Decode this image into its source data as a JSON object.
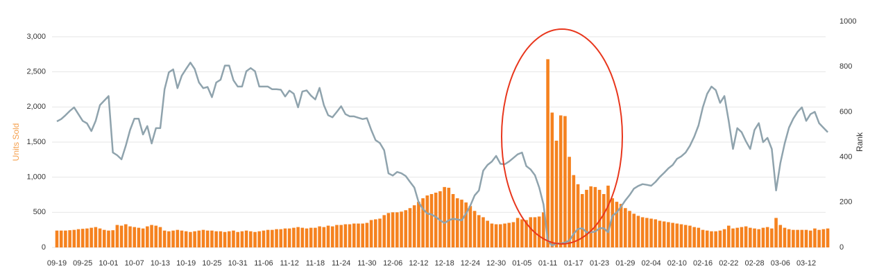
{
  "chart_data": {
    "type": "bar-line",
    "ylabel": "Units Sold",
    "y2label": "Rank",
    "categories": [
      "09-19",
      null,
      null,
      null,
      null,
      null,
      "09-25",
      null,
      null,
      null,
      null,
      null,
      "10-01",
      null,
      null,
      null,
      null,
      null,
      "10-07",
      null,
      null,
      null,
      null,
      null,
      "10-13",
      null,
      null,
      null,
      null,
      null,
      "10-19",
      null,
      null,
      null,
      null,
      null,
      "10-25",
      null,
      null,
      null,
      null,
      null,
      "10-31",
      null,
      null,
      null,
      null,
      null,
      "11-06",
      null,
      null,
      null,
      null,
      null,
      "11-12",
      null,
      null,
      null,
      null,
      null,
      "11-18",
      null,
      null,
      null,
      null,
      null,
      "11-24",
      null,
      null,
      null,
      null,
      null,
      "11-30",
      null,
      null,
      null,
      null,
      null,
      "12-06",
      null,
      null,
      null,
      null,
      null,
      "12-12",
      null,
      null,
      null,
      null,
      null,
      "12-18",
      null,
      null,
      null,
      null,
      null,
      "12-24",
      null,
      null,
      null,
      null,
      null,
      "12-30",
      null,
      null,
      null,
      null,
      null,
      "01-05",
      null,
      null,
      null,
      null,
      null,
      "01-11",
      null,
      null,
      null,
      null,
      null,
      "01-17",
      null,
      null,
      null,
      null,
      null,
      "01-23",
      null,
      null,
      null,
      null,
      null,
      "01-29",
      null,
      null,
      null,
      null,
      null,
      "02-04",
      null,
      null,
      null,
      null,
      null,
      "02-10",
      null,
      null,
      null,
      null,
      null,
      "02-16",
      null,
      null,
      null,
      null,
      null,
      "02-22",
      null,
      null,
      null,
      null,
      null,
      "02-28",
      null,
      null,
      null,
      null,
      null,
      "03-06",
      null,
      null,
      null,
      null,
      null,
      "03-12",
      null,
      null,
      null,
      null,
      null
    ],
    "series": [
      {
        "kind": "bar",
        "color": "#f5821f",
        "values": [
          240,
          240,
          240,
          245,
          250,
          260,
          265,
          270,
          280,
          290,
          270,
          250,
          240,
          245,
          320,
          310,
          330,
          300,
          290,
          280,
          270,
          300,
          320,
          310,
          290,
          240,
          230,
          240,
          250,
          240,
          230,
          220,
          230,
          240,
          250,
          240,
          240,
          230,
          230,
          220,
          230,
          240,
          220,
          230,
          240,
          230,
          220,
          230,
          240,
          250,
          250,
          260,
          260,
          270,
          270,
          280,
          290,
          280,
          270,
          280,
          280,
          300,
          290,
          310,
          300,
          320,
          320,
          330,
          330,
          340,
          340,
          340,
          350,
          390,
          400,
          410,
          460,
          490,
          500,
          500,
          510,
          530,
          560,
          600,
          650,
          700,
          740,
          760,
          780,
          800,
          860,
          850,
          760,
          700,
          680,
          640,
          590,
          520,
          460,
          430,
          380,
          340,
          330,
          330,
          340,
          350,
          360,
          420,
          400,
          390,
          430,
          430,
          440,
          500,
          2680,
          1920,
          1520,
          1880,
          1870,
          1290,
          1030,
          900,
          760,
          820,
          870,
          860,
          820,
          760,
          880,
          700,
          650,
          620,
          560,
          520,
          480,
          450,
          430,
          420,
          410,
          400,
          380,
          370,
          360,
          350,
          340,
          330,
          320,
          310,
          290,
          280,
          250,
          240,
          230,
          230,
          240,
          260,
          310,
          270,
          280,
          290,
          300,
          280,
          270,
          260,
          280,
          290,
          270,
          420,
          320,
          280,
          260,
          250,
          250,
          250,
          250,
          240,
          270,
          250,
          260,
          270
        ]
      },
      {
        "kind": "line",
        "axis": "y2",
        "color": "#8fa3ad",
        "values": [
          558,
          568,
          585,
          604,
          620,
          590,
          560,
          549,
          515,
          560,
          630,
          650,
          670,
          420,
          408,
          390,
          450,
          520,
          570,
          570,
          500,
          537,
          460,
          528,
          528,
          700,
          775,
          788,
          705,
          760,
          790,
          818,
          790,
          730,
          705,
          710,
          665,
          730,
          742,
          805,
          805,
          740,
          712,
          712,
          780,
          794,
          780,
          712,
          712,
          712,
          700,
          700,
          698,
          668,
          694,
          680,
          620,
          690,
          695,
          672,
          655,
          706,
          630,
          585,
          576,
          600,
          625,
          590,
          580,
          580,
          574,
          568,
          572,
          520,
          475,
          462,
          430,
          328,
          318,
          334,
          328,
          316,
          290,
          265,
          200,
          170,
          150,
          146,
          135,
          120,
          108,
          120,
          127,
          124,
          120,
          150,
          185,
          230,
          252,
          340,
          365,
          380,
          405,
          370,
          368,
          380,
          396,
          412,
          420,
          360,
          345,
          320,
          265,
          190,
          30,
          8,
          18,
          17,
          22,
          30,
          60,
          82,
          85,
          67,
          67,
          70,
          85,
          85,
          67,
          140,
          155,
          180,
          208,
          232,
          260,
          272,
          280,
          277,
          273,
          290,
          312,
          330,
          350,
          365,
          392,
          403,
          420,
          450,
          490,
          540,
          620,
          680,
          712,
          696,
          640,
          670,
          560,
          436,
          528,
          510,
          470,
          436,
          520,
          550,
          466,
          485,
          436,
          252,
          374,
          460,
          530,
          570,
          600,
          620,
          560,
          590,
          600,
          550,
          530,
          510
        ]
      }
    ],
    "ylim": [
      0,
      3000
    ],
    "yticks": [
      0,
      500,
      {
        "value": 1000,
        "label": "1,000"
      },
      {
        "value": 1500,
        "label": "1,500"
      },
      {
        "value": 2000,
        "label": "2,000"
      },
      {
        "value": 2500,
        "label": "2,500"
      },
      {
        "value": 3000,
        "label": "3,000"
      }
    ],
    "y2lim": [
      0,
      1000
    ],
    "y2ticks": [
      0,
      200,
      400,
      600,
      800,
      1000
    ],
    "grid": true
  }
}
